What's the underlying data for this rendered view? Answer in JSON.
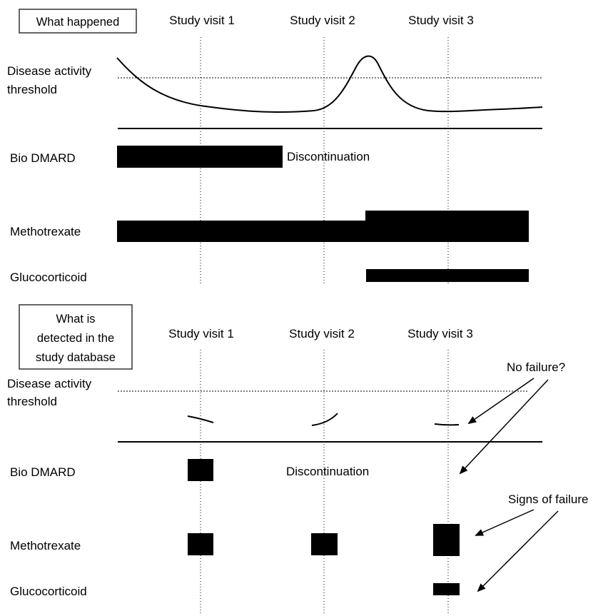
{
  "panels": {
    "top": {
      "title": "What happened",
      "visits": [
        "Study visit 1",
        "Study visit 2",
        "Study visit 3"
      ],
      "threshold_label": [
        "Disease activity",
        "threshold"
      ],
      "rows": [
        "Bio DMARD",
        "Methotrexate",
        "Glucocorticoid"
      ],
      "discontinuation": "Discontinuation"
    },
    "bottom": {
      "title": [
        "What is",
        "detected in the",
        "study database"
      ],
      "visits": [
        "Study visit 1",
        "Study visit 2",
        "Study visit 3"
      ],
      "threshold_label": [
        "Disease activity",
        "threshold"
      ],
      "rows": [
        "Bio DMARD",
        "Methotrexate",
        "Glucocorticoid"
      ],
      "discontinuation": "Discontinuation",
      "annotations": {
        "no_failure": "No failure?",
        "signs_of_failure": "Signs of failure"
      }
    }
  },
  "colors": {
    "ink": "#000000",
    "background": "#ffffff",
    "box_border": "#333333"
  }
}
